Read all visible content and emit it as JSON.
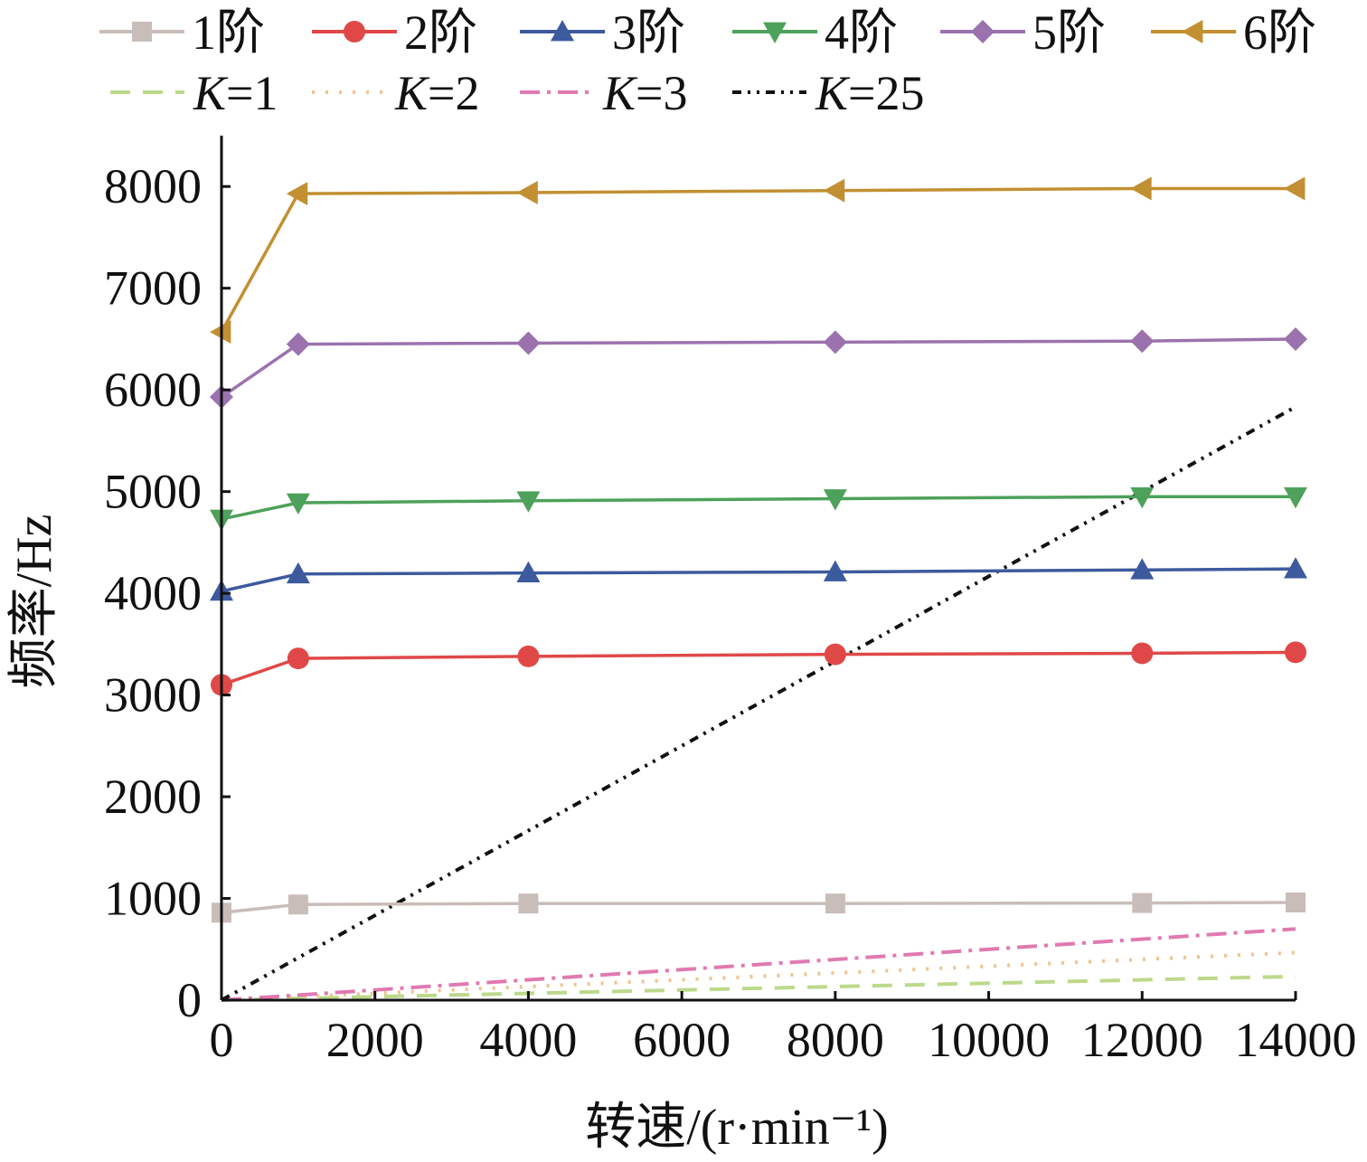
{
  "chart_data": {
    "type": "line",
    "xlabel": "转速/(r·min⁻¹)",
    "ylabel": "频率/Hz",
    "xlim": [
      0,
      14000
    ],
    "ylim": [
      0,
      8500
    ],
    "xticks": [
      0,
      2000,
      4000,
      6000,
      8000,
      10000,
      12000,
      14000
    ],
    "yticks": [
      0,
      1000,
      2000,
      3000,
      4000,
      5000,
      6000,
      7000,
      8000
    ],
    "grid": false,
    "legend_position": "top",
    "x": [
      0,
      1000,
      4000,
      8000,
      12000,
      14000
    ],
    "series": [
      {
        "name": "1阶",
        "color": "#c9bdb9",
        "marker": "square",
        "values": [
          860,
          940,
          950,
          950,
          955,
          960
        ]
      },
      {
        "name": "2阶",
        "color": "#e04848",
        "marker": "circle",
        "values": [
          3100,
          3360,
          3380,
          3400,
          3410,
          3420
        ]
      },
      {
        "name": "3阶",
        "color": "#3d5a9e",
        "marker": "triangle-up",
        "values": [
          4020,
          4190,
          4200,
          4210,
          4230,
          4240
        ]
      },
      {
        "name": "4阶",
        "color": "#4ea15a",
        "marker": "triangle-down",
        "values": [
          4730,
          4890,
          4910,
          4930,
          4950,
          4950
        ]
      },
      {
        "name": "5阶",
        "color": "#9b72ae",
        "marker": "diamond",
        "values": [
          5930,
          6450,
          6460,
          6470,
          6480,
          6500
        ]
      },
      {
        "name": "6阶",
        "color": "#c29032",
        "marker": "triangle-left",
        "values": [
          6570,
          7930,
          7940,
          7960,
          7980,
          7980
        ]
      }
    ],
    "reference_lines": [
      {
        "name": "K=1",
        "name_italic": "K",
        "name_rest": "=1",
        "color": "#bcd98a",
        "dash": "dashed",
        "x": [
          0,
          14000
        ],
        "values": [
          0,
          233
        ]
      },
      {
        "name": "K=2",
        "name_italic": "K",
        "name_rest": "=2",
        "color": "#f1c391",
        "dash": "dotted",
        "x": [
          0,
          14000
        ],
        "values": [
          0,
          467
        ]
      },
      {
        "name": "K=3",
        "name_italic": "K",
        "name_rest": "=3",
        "color": "#e07ab1",
        "dash": "dashdot",
        "x": [
          0,
          14000
        ],
        "values": [
          0,
          700
        ]
      },
      {
        "name": "K=25",
        "name_italic": "K",
        "name_rest": "=25",
        "color": "#111111",
        "dash": "dashdotdot",
        "x": [
          0,
          14000
        ],
        "values": [
          0,
          5833
        ]
      }
    ]
  }
}
